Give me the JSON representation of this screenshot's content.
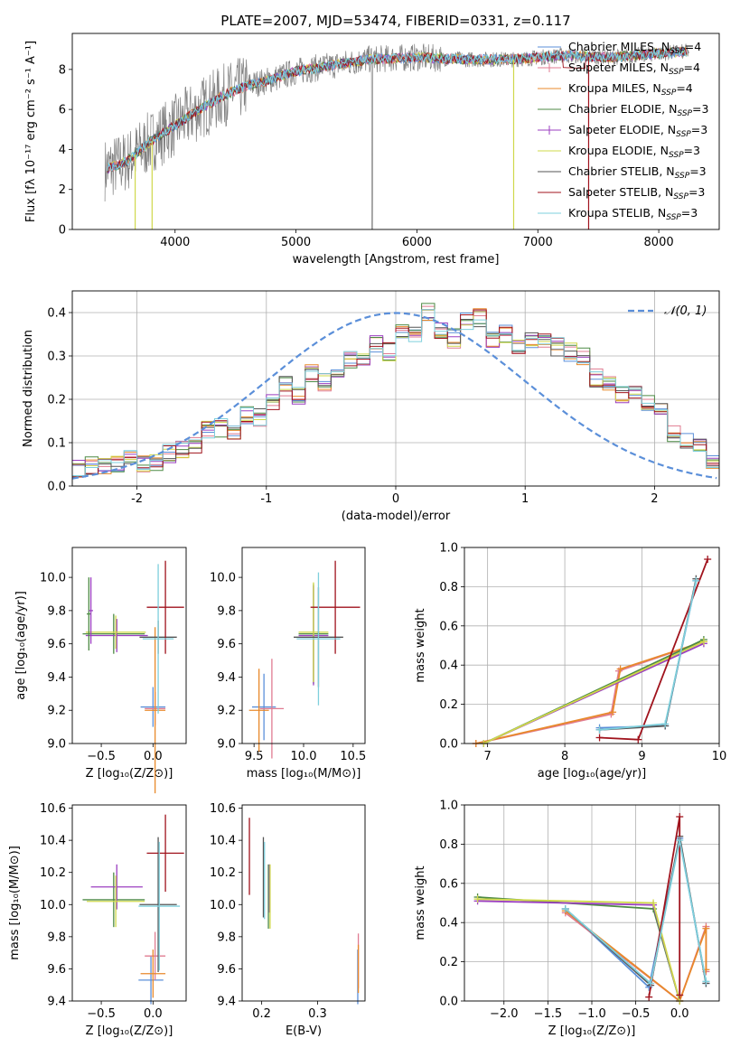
{
  "palette": [
    "#5b8fd9",
    "#e07b91",
    "#e8892b",
    "#4d8a45",
    "#9b3fc0",
    "#cfd84b",
    "#555555",
    "#a0131d",
    "#7ecfdc"
  ],
  "chart_data": [
    {
      "id": "spectrum",
      "type": "line",
      "title": "PLATE=2007, MJD=53474, FIBERID=0331, z=0.117",
      "xlabel": "wavelength [Angstrom, rest frame]",
      "ylabel": "Flux [fλ 10⁻¹⁷ erg cm⁻² s⁻¹ A⁻¹]",
      "xlim": [
        3150,
        8500
      ],
      "ylim": [
        0,
        9.8
      ],
      "xticks": [
        4000,
        5000,
        6000,
        7000,
        8000
      ],
      "yticks": [
        0,
        2,
        4,
        6,
        8
      ],
      "continuum_x": [
        3420,
        3600,
        3800,
        4000,
        4200,
        4400,
        4600,
        4800,
        5000,
        5300,
        5600,
        6000,
        6400,
        6800,
        7200,
        7600,
        8000,
        8250
      ],
      "continuum_y": [
        3.0,
        3.4,
        4.4,
        5.2,
        6.0,
        6.7,
        7.2,
        7.5,
        7.9,
        8.2,
        8.5,
        8.6,
        8.5,
        8.5,
        8.7,
        8.6,
        8.8,
        8.9
      ],
      "legend": [
        {
          "label": "Chabrier MILES, N_SSP=4",
          "text": "Chabrier MILES, N",
          "sub": "SSP",
          "suffix": "=4"
        },
        {
          "label": "Salpeter MILES, N_SSP=4",
          "text": "Salpeter MILES, N",
          "sub": "SSP",
          "suffix": "=4"
        },
        {
          "label": "Kroupa MILES, N_SSP=4",
          "text": "Kroupa MILES, N",
          "sub": "SSP",
          "suffix": "=4"
        },
        {
          "label": "Chabrier ELODIE, N_SSP=3",
          "text": "Chabrier ELODIE, N",
          "sub": "SSP",
          "suffix": "=3"
        },
        {
          "label": "Salpeter ELODIE, N_SSP=3",
          "text": "Salpeter ELODIE, N",
          "sub": "SSP",
          "suffix": "=3"
        },
        {
          "label": "Kroupa ELODIE, N_SSP=3",
          "text": "Kroupa ELODIE, N",
          "sub": "SSP",
          "suffix": "=3"
        },
        {
          "label": "Chabrier STELIB, N_SSP=3",
          "text": "Chabrier STELIB, N",
          "sub": "SSP",
          "suffix": "=3"
        },
        {
          "label": "Salpeter STELIB, N_SSP=3",
          "text": "Salpeter STELIB, N",
          "sub": "SSP",
          "suffix": "=3"
        },
        {
          "label": "Kroupa STELIB, N_SSP=3",
          "text": "Kroupa STELIB, N",
          "sub": "SSP",
          "suffix": "=3"
        }
      ]
    },
    {
      "id": "residuals",
      "type": "step",
      "xlabel": "(data-model)/error",
      "ylabel": "Normed distribution",
      "xlim": [
        -2.5,
        2.5
      ],
      "ylim": [
        0,
        0.45
      ],
      "xticks": [
        -2,
        -1,
        0,
        1,
        2
      ],
      "yticks": [
        0.0,
        0.1,
        0.2,
        0.3,
        0.4
      ],
      "grid": true,
      "bin_width": 0.1,
      "bin_start": -2.5,
      "base_values": [
        0.04,
        0.045,
        0.05,
        0.05,
        0.07,
        0.055,
        0.05,
        0.075,
        0.085,
        0.095,
        0.13,
        0.135,
        0.12,
        0.165,
        0.16,
        0.19,
        0.23,
        0.21,
        0.26,
        0.24,
        0.26,
        0.29,
        0.3,
        0.33,
        0.31,
        0.36,
        0.35,
        0.4,
        0.36,
        0.34,
        0.38,
        0.39,
        0.34,
        0.35,
        0.32,
        0.34,
        0.33,
        0.32,
        0.31,
        0.3,
        0.25,
        0.24,
        0.21,
        0.21,
        0.19,
        0.18,
        0.12,
        0.1,
        0.09,
        0.05
      ],
      "reference": {
        "label": "𝒩(0, 1)",
        "mean": 0,
        "sigma": 1
      }
    },
    {
      "id": "age-vs-Z",
      "type": "errorbar",
      "xlabel": "Z [log₁₀(Z/Z⊙)]",
      "ylabel": "age  [log₁₀(age/yr)]",
      "xlim": [
        -0.78,
        0.32
      ],
      "ylim": [
        9.0,
        10.18
      ],
      "xticks": [
        -0.5,
        0.0
      ],
      "xticklabels": [
        "−0.5",
        "0.0"
      ],
      "yticks": [
        9.0,
        9.2,
        9.4,
        9.6,
        9.8,
        10.0
      ],
      "points": [
        {
          "c": 0,
          "x": 0.0,
          "xerr": 0.12,
          "y": 9.22,
          "yerr": 0.12
        },
        {
          "c": 1,
          "x": 0.02,
          "xerr": 0.1,
          "y": 9.21,
          "yerr": 0.1
        },
        {
          "c": 2,
          "x": 0.02,
          "xerr": 0.1,
          "y": 9.2,
          "yerr": 0.5
        },
        {
          "c": 3,
          "x": -0.38,
          "xerr": 0.3,
          "y": 9.66,
          "yerr": 0.12
        },
        {
          "c": 4,
          "x": -0.35,
          "xerr": 0.3,
          "y": 9.65,
          "yerr": 0.1
        },
        {
          "c": 5,
          "x": -0.36,
          "xerr": 0.29,
          "y": 9.67,
          "yerr": 0.1
        },
        {
          "c": 6,
          "x": 0.05,
          "xerr": 0.18,
          "y": 9.64,
          "yerr": 0.1
        },
        {
          "c": 7,
          "x": 0.12,
          "xerr": 0.18,
          "y": 9.82,
          "yerr": 0.28
        },
        {
          "c": 8,
          "x": 0.05,
          "xerr": 0.15,
          "y": 9.63,
          "yerr": 0.45
        },
        {
          "c": 3,
          "x": -0.62,
          "xerr": 0.02,
          "y": 9.78,
          "yerr": 0.22
        },
        {
          "c": 4,
          "x": -0.6,
          "xerr": 0.02,
          "y": 9.8,
          "yerr": 0.2
        }
      ]
    },
    {
      "id": "age-vs-mass",
      "type": "errorbar",
      "xlabel": "mass [log₁₀(M/M⊙)]",
      "ylabel": "",
      "xlim": [
        9.38,
        10.62
      ],
      "ylim": [
        9.0,
        10.18
      ],
      "xticks": [
        9.5,
        10.0,
        10.5
      ],
      "xticklabels": [
        "9.5",
        "10.0",
        "10.5"
      ],
      "yticks": [
        9.0,
        9.2,
        9.4,
        9.6,
        9.8,
        10.0
      ],
      "points": [
        {
          "c": 0,
          "x": 9.6,
          "xerr": 0.12,
          "y": 9.22,
          "yerr": 0.2
        },
        {
          "c": 1,
          "x": 9.68,
          "xerr": 0.12,
          "y": 9.21,
          "yerr": 0.3
        },
        {
          "c": 2,
          "x": 9.55,
          "xerr": 0.1,
          "y": 9.2,
          "yerr": 0.25
        },
        {
          "c": 3,
          "x": 10.1,
          "xerr": 0.15,
          "y": 9.66,
          "yerr": 0.3
        },
        {
          "c": 4,
          "x": 10.1,
          "xerr": 0.15,
          "y": 9.65,
          "yerr": 0.3
        },
        {
          "c": 5,
          "x": 10.1,
          "xerr": 0.15,
          "y": 9.67,
          "yerr": 0.3
        },
        {
          "c": 6,
          "x": 10.15,
          "xerr": 0.25,
          "y": 9.64,
          "yerr": 0.3
        },
        {
          "c": 7,
          "x": 10.32,
          "xerr": 0.25,
          "y": 9.82,
          "yerr": 0.28
        },
        {
          "c": 8,
          "x": 10.15,
          "xerr": 0.22,
          "y": 9.63,
          "yerr": 0.4
        }
      ]
    },
    {
      "id": "mass-weight-vs-age",
      "type": "line",
      "xlabel": "age  [log₁₀(age/yr)]",
      "ylabel": "mass weight",
      "xlim": [
        6.7,
        10.0
      ],
      "ylim": [
        0.0,
        1.0
      ],
      "xticks": [
        7,
        8,
        9,
        10
      ],
      "yticks": [
        0.0,
        0.2,
        0.4,
        0.6,
        0.8,
        1.0
      ],
      "grid": true,
      "series": [
        {
          "c": 0,
          "x": [
            8.45,
            9.3,
            9.7
          ],
          "y": [
            0.08,
            0.09,
            0.83
          ]
        },
        {
          "c": 1,
          "x": [
            6.85,
            8.6,
            8.7,
            9.8
          ],
          "y": [
            0.0,
            0.15,
            0.37,
            0.52
          ]
        },
        {
          "c": 2,
          "x": [
            6.85,
            8.62,
            8.72,
            9.8
          ],
          "y": [
            0.0,
            0.16,
            0.38,
            0.52
          ]
        },
        {
          "c": 3,
          "x": [
            6.95,
            9.8
          ],
          "y": [
            0.0,
            0.53
          ]
        },
        {
          "c": 4,
          "x": [
            6.95,
            9.8
          ],
          "y": [
            0.0,
            0.51
          ]
        },
        {
          "c": 5,
          "x": [
            6.95,
            9.8
          ],
          "y": [
            0.0,
            0.52
          ]
        },
        {
          "c": 6,
          "x": [
            8.45,
            9.3,
            9.7
          ],
          "y": [
            0.07,
            0.09,
            0.84
          ]
        },
        {
          "c": 7,
          "x": [
            8.45,
            8.95,
            9.85
          ],
          "y": [
            0.03,
            0.02,
            0.94
          ]
        },
        {
          "c": 8,
          "x": [
            8.45,
            9.3,
            9.7
          ],
          "y": [
            0.07,
            0.1,
            0.83
          ]
        }
      ]
    },
    {
      "id": "mass-vs-Z",
      "type": "errorbar",
      "xlabel": "Z [log₁₀(Z/Z⊙)]",
      "ylabel": "mass [log₁₀(M/M⊙)]",
      "xlim": [
        -0.78,
        0.32
      ],
      "ylim": [
        9.4,
        10.62
      ],
      "xticks": [
        -0.5,
        0.0
      ],
      "xticklabels": [
        "−0.5",
        "0.0"
      ],
      "yticks": [
        9.4,
        9.6,
        9.8,
        10.0,
        10.2,
        10.4,
        10.6
      ],
      "points": [
        {
          "c": 0,
          "x": -0.02,
          "xerr": 0.12,
          "y": 9.53,
          "yerr": 0.15
        },
        {
          "c": 1,
          "x": 0.02,
          "xerr": 0.1,
          "y": 9.68,
          "yerr": 0.15
        },
        {
          "c": 2,
          "x": 0.0,
          "xerr": 0.12,
          "y": 9.57,
          "yerr": 0.15
        },
        {
          "c": 3,
          "x": -0.38,
          "xerr": 0.3,
          "y": 10.03,
          "yerr": 0.17
        },
        {
          "c": 4,
          "x": -0.35,
          "xerr": 0.25,
          "y": 10.11,
          "yerr": 0.14
        },
        {
          "c": 5,
          "x": -0.36,
          "xerr": 0.28,
          "y": 10.02,
          "yerr": 0.16
        },
        {
          "c": 6,
          "x": 0.05,
          "xerr": 0.18,
          "y": 10.0,
          "yerr": 0.42
        },
        {
          "c": 7,
          "x": 0.12,
          "xerr": 0.18,
          "y": 10.32,
          "yerr": 0.24
        },
        {
          "c": 8,
          "x": 0.06,
          "xerr": 0.2,
          "y": 9.99,
          "yerr": 0.4
        }
      ]
    },
    {
      "id": "mass-vs-EBV",
      "type": "errorbar",
      "xlabel": "E(B-V)",
      "ylabel": "",
      "xlim": [
        0.165,
        0.385
      ],
      "ylim": [
        9.4,
        10.62
      ],
      "xticks": [
        0.2,
        0.3
      ],
      "xticklabels": [
        "0.2",
        "0.3"
      ],
      "yticks": [
        9.4,
        9.6,
        9.8,
        10.0,
        10.2,
        10.4,
        10.6
      ],
      "points": [
        {
          "c": 0,
          "x": 0.372,
          "xerr": 0,
          "y": 9.55,
          "yerr": 0.17
        },
        {
          "c": 1,
          "x": 0.373,
          "xerr": 0,
          "y": 9.65,
          "yerr": 0.17
        },
        {
          "c": 2,
          "x": 0.373,
          "xerr": 0,
          "y": 9.6,
          "yerr": 0.15
        },
        {
          "c": 3,
          "x": 0.212,
          "xerr": 0,
          "y": 10.05,
          "yerr": 0.2
        },
        {
          "c": 4,
          "x": 0.214,
          "xerr": 0,
          "y": 10.1,
          "yerr": 0.15
        },
        {
          "c": 5,
          "x": 0.215,
          "xerr": 0,
          "y": 10.05,
          "yerr": 0.2
        },
        {
          "c": 6,
          "x": 0.203,
          "xerr": 0,
          "y": 10.17,
          "yerr": 0.25
        },
        {
          "c": 7,
          "x": 0.178,
          "xerr": 0,
          "y": 10.3,
          "yerr": 0.24
        },
        {
          "c": 8,
          "x": 0.205,
          "xerr": 0,
          "y": 10.15,
          "yerr": 0.24
        }
      ]
    },
    {
      "id": "mass-weight-vs-Z",
      "type": "line",
      "xlabel": "Z [log₁₀(Z/Z⊙)]",
      "ylabel": "mass weight",
      "xlim": [
        -2.45,
        0.45
      ],
      "ylim": [
        0.0,
        1.0
      ],
      "xticks": [
        -2.0,
        -1.5,
        -1.0,
        -0.5,
        0.0
      ],
      "xticklabels": [
        "−2.0",
        "−1.5",
        "−1.0",
        "−0.5",
        "0.0"
      ],
      "yticks": [
        0.0,
        0.2,
        0.4,
        0.6,
        0.8,
        1.0
      ],
      "grid": true,
      "series": [
        {
          "c": 0,
          "x": [
            -1.3,
            -0.35,
            0.0,
            0.3
          ],
          "y": [
            0.47,
            0.07,
            0.83,
            0.09
          ]
        },
        {
          "c": 1,
          "x": [
            -1.3,
            0.0,
            0.3,
            0.3
          ],
          "y": [
            0.45,
            0.0,
            0.38,
            0.15
          ]
        },
        {
          "c": 2,
          "x": [
            -1.3,
            0.0,
            0.3,
            0.3
          ],
          "y": [
            0.46,
            0.0,
            0.37,
            0.16
          ]
        },
        {
          "c": 3,
          "x": [
            -2.3,
            -0.3,
            0.0
          ],
          "y": [
            0.53,
            0.47,
            0.0
          ]
        },
        {
          "c": 4,
          "x": [
            -2.3,
            -0.3,
            0.0
          ],
          "y": [
            0.51,
            0.49,
            0.0
          ]
        },
        {
          "c": 5,
          "x": [
            -2.3,
            -0.3,
            0.0
          ],
          "y": [
            0.52,
            0.5,
            0.0
          ]
        },
        {
          "c": 6,
          "x": [
            -1.3,
            -0.33,
            0.0,
            0.3
          ],
          "y": [
            0.47,
            0.08,
            0.84,
            0.09
          ]
        },
        {
          "c": 7,
          "x": [
            -0.35,
            0.0,
            0.0
          ],
          "y": [
            0.02,
            0.94,
            0.03
          ]
        },
        {
          "c": 8,
          "x": [
            -1.3,
            -0.33,
            0.0,
            0.3
          ],
          "y": [
            0.47,
            0.09,
            0.82,
            0.1
          ]
        }
      ]
    }
  ]
}
